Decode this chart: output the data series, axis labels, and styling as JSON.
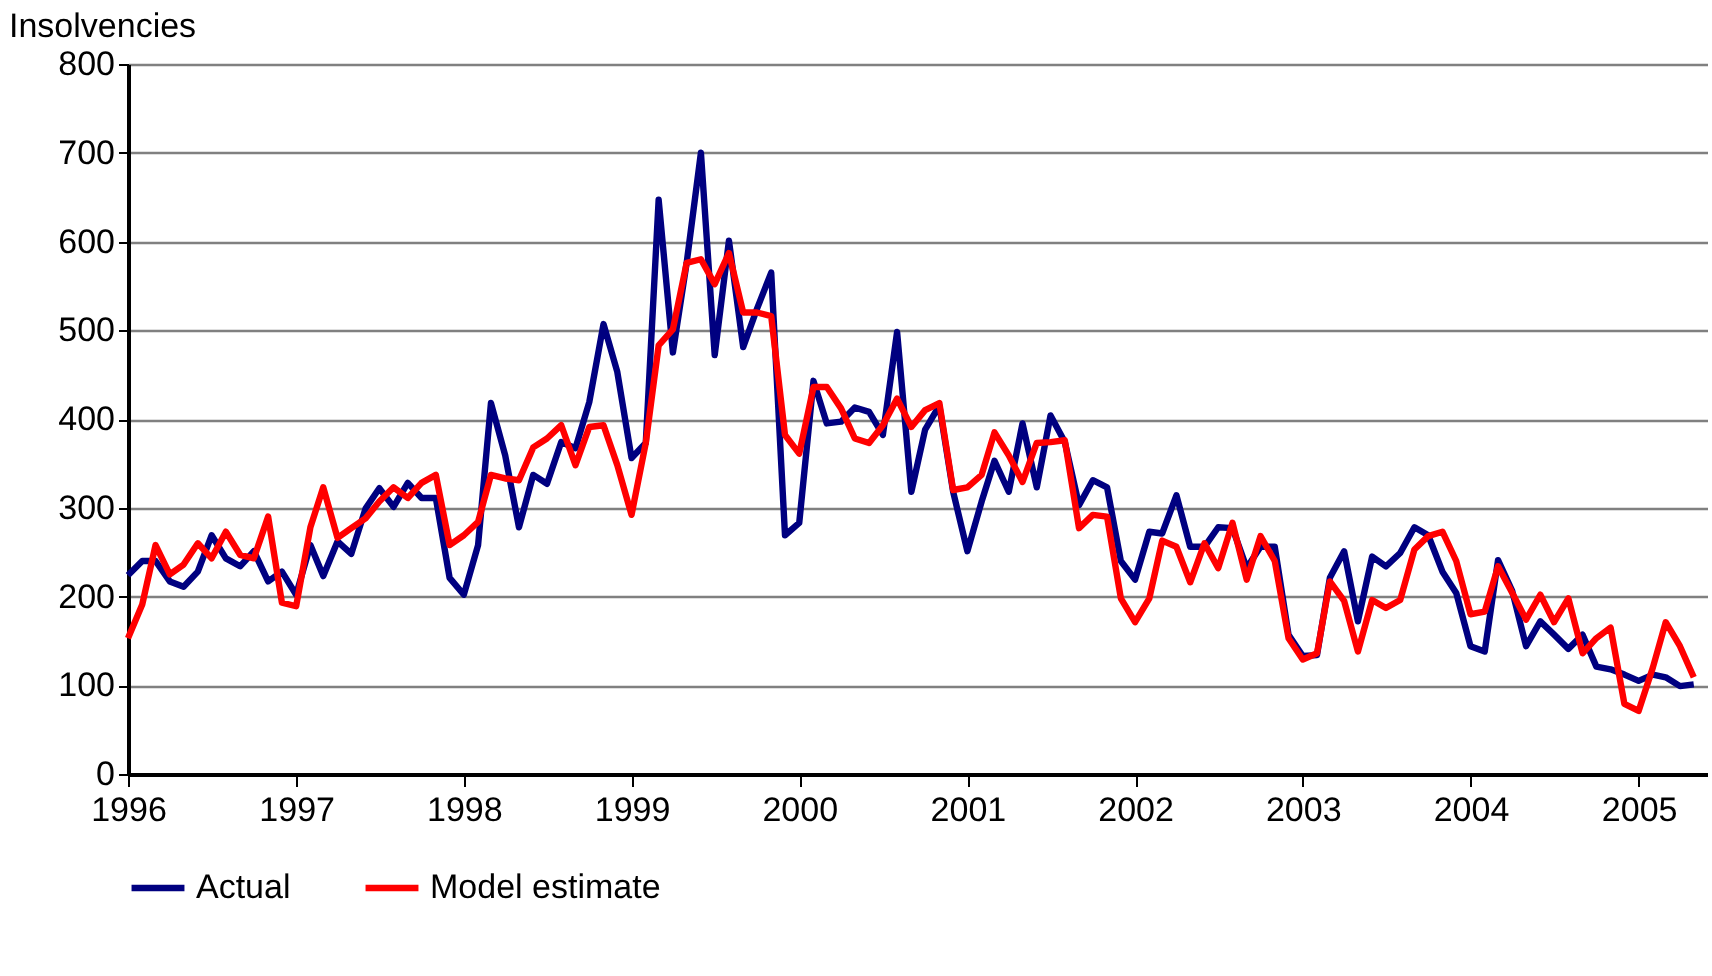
{
  "chart_data": {
    "type": "line",
    "ylabel": "Insolvencies",
    "x": [
      "1996-01",
      "1996-02",
      "1996-03",
      "1996-04",
      "1996-05",
      "1996-06",
      "1996-07",
      "1996-08",
      "1996-09",
      "1996-10",
      "1996-11",
      "1996-12",
      "1997-01",
      "1997-02",
      "1997-03",
      "1997-04",
      "1997-05",
      "1997-06",
      "1997-07",
      "1997-08",
      "1997-09",
      "1997-10",
      "1997-11",
      "1997-12",
      "1998-01",
      "1998-02",
      "1998-03",
      "1998-04",
      "1998-05",
      "1998-06",
      "1998-07",
      "1998-08",
      "1998-09",
      "1998-10",
      "1998-11",
      "1998-12",
      "1999-01",
      "1999-02",
      "1999-03",
      "1999-04",
      "1999-05",
      "1999-06",
      "1999-07",
      "1999-08",
      "1999-09",
      "1999-10",
      "1999-11",
      "1999-12",
      "2000-01",
      "2000-02",
      "2000-03",
      "2000-04",
      "2000-05",
      "2000-06",
      "2000-07",
      "2000-08",
      "2000-09",
      "2000-10",
      "2000-11",
      "2000-12",
      "2001-01",
      "2001-02",
      "2001-03",
      "2001-04",
      "2001-05",
      "2001-06",
      "2001-07",
      "2001-08",
      "2001-09",
      "2001-10",
      "2001-11",
      "2001-12",
      "2002-01",
      "2002-02",
      "2002-03",
      "2002-04",
      "2002-05",
      "2002-06",
      "2002-07",
      "2002-08",
      "2002-09",
      "2002-10",
      "2002-11",
      "2002-12",
      "2003-01",
      "2003-02",
      "2003-03",
      "2003-04",
      "2003-05",
      "2003-06",
      "2003-07",
      "2003-08",
      "2003-09",
      "2003-10",
      "2003-11",
      "2003-12",
      "2004-01",
      "2004-02",
      "2004-03",
      "2004-04",
      "2004-05",
      "2004-06",
      "2004-07",
      "2004-08",
      "2004-09",
      "2004-10",
      "2004-11",
      "2004-12",
      "2005-01",
      "2005-02",
      "2005-03",
      "2005-04",
      "2005-05"
    ],
    "series": [
      {
        "name": "Actual",
        "color": "#000080",
        "values": [
          224,
          240,
          240,
          217,
          211,
          228,
          269,
          243,
          234,
          251,
          217,
          228,
          202,
          258,
          223,
          262,
          248,
          299,
          322,
          301,
          328,
          311,
          311,
          221,
          202,
          258,
          418,
          359,
          278,
          337,
          327,
          374,
          367,
          419,
          507,
          453,
          356,
          373,
          647,
          475,
          576,
          700,
          472,
          601,
          481,
          524,
          565,
          269,
          283,
          443,
          395,
          397,
          413,
          408,
          382,
          498,
          318,
          388,
          415,
          318,
          251,
          307,
          353,
          318,
          395,
          323,
          404,
          374,
          303,
          331,
          323,
          240,
          219,
          273,
          271,
          314,
          256,
          256,
          278,
          277,
          232,
          256,
          256,
          157,
          133,
          134,
          221,
          251,
          172,
          245,
          234,
          249,
          278,
          269,
          228,
          204,
          144,
          138,
          241,
          206,
          144,
          172,
          157,
          141,
          157,
          121,
          118,
          112,
          105,
          112,
          109,
          99,
          101
        ]
      },
      {
        "name": "Model estimate",
        "color": "#ff0000",
        "values": [
          153,
          191,
          258,
          225,
          236,
          260,
          243,
          273,
          247,
          243,
          290,
          193,
          189,
          278,
          323,
          266,
          277,
          288,
          307,
          323,
          311,
          328,
          337,
          258,
          269,
          284,
          337,
          333,
          331,
          368,
          378,
          393,
          348,
          391,
          393,
          348,
          292,
          373,
          483,
          501,
          576,
          580,
          552,
          587,
          520,
          520,
          516,
          382,
          361,
          436,
          436,
          412,
          378,
          373,
          393,
          423,
          391,
          410,
          418,
          320,
          323,
          337,
          385,
          359,
          329,
          373,
          374,
          376,
          277,
          292,
          290,
          198,
          171,
          198,
          263,
          256,
          216,
          260,
          232,
          283,
          219,
          268,
          240,
          153,
          129,
          136,
          217,
          195,
          138,
          196,
          187,
          196,
          253,
          268,
          273,
          240,
          180,
          183,
          234,
          204,
          174,
          202,
          171,
          198,
          136,
          153,
          165,
          79,
          71,
          120,
          171,
          144,
          109
        ]
      }
    ],
    "xlim": [
      "1996-01",
      "2005-06"
    ],
    "xticks": [
      "1996",
      "1997",
      "1998",
      "1999",
      "2000",
      "2001",
      "2002",
      "2003",
      "2004",
      "2005"
    ],
    "ylim": [
      0,
      800
    ],
    "yticks": [
      0,
      100,
      200,
      300,
      400,
      500,
      600,
      700,
      800
    ],
    "grid": "y",
    "legend": "bottom",
    "line_style": "solid"
  }
}
